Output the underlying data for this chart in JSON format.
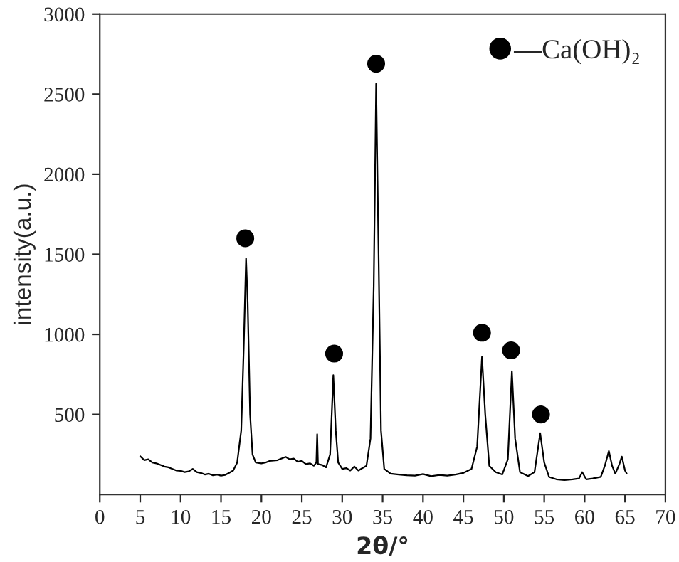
{
  "chart_data": {
    "type": "line",
    "xlabel": "2θ/°",
    "ylabel": "intensity(a.u.)",
    "xlim": [
      0,
      70
    ],
    "xticks": [
      0,
      5,
      10,
      15,
      20,
      25,
      30,
      35,
      40,
      45,
      50,
      55,
      60,
      65,
      70
    ],
    "ylim": [
      0,
      3000
    ],
    "yticks": [
      500,
      1000,
      1500,
      2000,
      2500,
      3000
    ],
    "grid": false,
    "legend": "top right",
    "series": [
      {
        "color": "#000000",
        "marker": "none",
        "line_style": "solid",
        "x": [
          5.0,
          5.5,
          6,
          6.5,
          7,
          7.5,
          8,
          8.5,
          9,
          9.5,
          10,
          10.5,
          11,
          11.5,
          12,
          12.5,
          13,
          13.5,
          14,
          14.5,
          15,
          15.5,
          16,
          16.5,
          17,
          17.5,
          17.8,
          18.1,
          18.3,
          18.6,
          18.9,
          19.3,
          20,
          20.5,
          21,
          22,
          23,
          23.5,
          24,
          24.5,
          25,
          25.5,
          26,
          26.5,
          26.8,
          26.9,
          27.0,
          27.5,
          28,
          28.5,
          28.9,
          29.2,
          29.5,
          30,
          30.5,
          31,
          31.5,
          32,
          32.5,
          33,
          33.5,
          33.9,
          34.2,
          34.5,
          34.8,
          35.2,
          36,
          37,
          38,
          39,
          40,
          41,
          42,
          43,
          44,
          45,
          46,
          46.7,
          47.3,
          47.7,
          48.2,
          49,
          49.8,
          50.5,
          51.0,
          51.4,
          52,
          53,
          53.8,
          54.5,
          55,
          55.6,
          56.5,
          57.5,
          58.5,
          59.3,
          59.7,
          60.2,
          61,
          62,
          62.5,
          63.0,
          63.4,
          63.8,
          64.3,
          64.6,
          65,
          65.2
        ],
        "values": [
          240,
          215,
          220,
          200,
          195,
          185,
          175,
          170,
          160,
          150,
          148,
          140,
          145,
          160,
          140,
          135,
          125,
          130,
          120,
          125,
          118,
          122,
          135,
          150,
          200,
          400,
          900,
          1474,
          1200,
          500,
          250,
          200,
          195,
          200,
          210,
          215,
          235,
          220,
          225,
          205,
          210,
          190,
          195,
          180,
          200,
          377,
          190,
          185,
          170,
          250,
          745,
          400,
          200,
          160,
          165,
          150,
          175,
          150,
          165,
          180,
          350,
          1300,
          2565,
          1500,
          400,
          160,
          130,
          125,
          120,
          118,
          128,
          115,
          122,
          118,
          125,
          135,
          160,
          300,
          860,
          500,
          180,
          140,
          125,
          220,
          770,
          350,
          140,
          115,
          140,
          383,
          200,
          110,
          95,
          90,
          95,
          100,
          140,
          95,
          100,
          110,
          180,
          272,
          180,
          130,
          190,
          237,
          150,
          132
        ]
      },
      {
        "type": "scatter",
        "name": "—Ca(OH)₂",
        "color": "#000000",
        "marker": "circle",
        "x": [
          18.0,
          29.0,
          34.2,
          47.3,
          50.9,
          54.6
        ],
        "values": [
          1600,
          880,
          2690,
          1010,
          900,
          500
        ]
      }
    ]
  }
}
